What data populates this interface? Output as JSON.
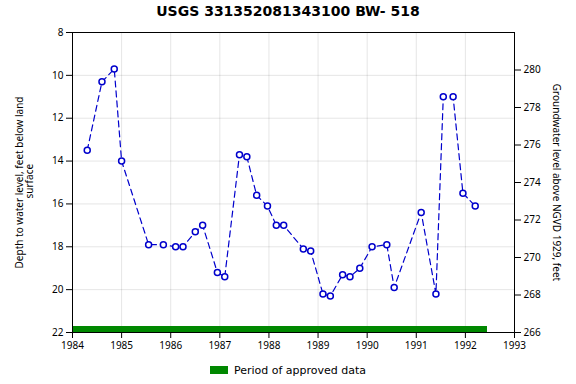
{
  "chart_data": {
    "type": "line",
    "title": "USGS 331352081343100 BW- 518",
    "ylabel": "Depth to water level, feet below land\n surface",
    "y2label": "Groundwater level above NGVD 1929, feet",
    "x": [
      1984.3,
      1984.6,
      1984.85,
      1985.0,
      1985.55,
      1985.85,
      1986.1,
      1986.25,
      1986.5,
      1986.65,
      1986.95,
      1987.1,
      1987.4,
      1987.55,
      1987.75,
      1987.97,
      1988.15,
      1988.3,
      1988.7,
      1988.85,
      1989.1,
      1989.25,
      1989.5,
      1989.65,
      1989.85,
      1990.1,
      1990.4,
      1990.55,
      1991.1,
      1991.4,
      1991.55,
      1991.75,
      1991.95,
      1992.2
    ],
    "series": [
      {
        "values": [
          13.5,
          10.3,
          9.7,
          14.0,
          17.9,
          17.9,
          18.0,
          18.0,
          17.3,
          17.0,
          19.2,
          19.4,
          13.7,
          13.8,
          15.6,
          16.1,
          17.0,
          17.0,
          18.1,
          18.2,
          20.2,
          20.3,
          19.3,
          19.4,
          19.0,
          18.0,
          17.9,
          19.9,
          16.4,
          20.2,
          11.0,
          11.0,
          15.5,
          16.1
        ],
        "color": "#0000cc",
        "marker": "circle",
        "line_style": "dashed"
      }
    ],
    "xlim": [
      1984,
      1993
    ],
    "xticks": [
      1984,
      1985,
      1986,
      1987,
      1988,
      1989,
      1990,
      1991,
      1992,
      1993
    ],
    "ylim": [
      22,
      8
    ],
    "yticks": [
      8,
      10,
      12,
      14,
      16,
      18,
      20,
      22
    ],
    "y2lim": [
      266,
      282
    ],
    "y2ticks": [
      266,
      268,
      270,
      272,
      274,
      276,
      278,
      280
    ],
    "grid": true,
    "legend": "bottom",
    "periods": [
      {
        "name": "Period of approved data",
        "color": "#008800",
        "start": 1984.0,
        "end": 1992.45
      }
    ]
  }
}
